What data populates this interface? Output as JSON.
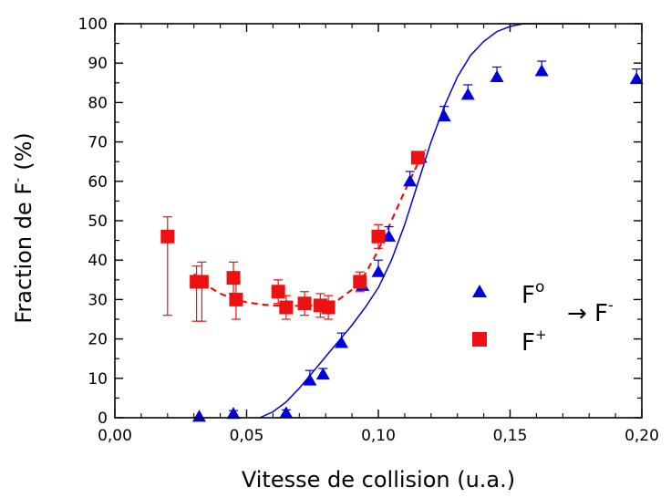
{
  "chart_data": {
    "type": "scatter",
    "xlabel": "Vitesse de collision (u.a.)",
    "ylabel_main": "Fraction de F",
    "ylabel_sup": "-",
    "ylabel_unit": "(%)",
    "xlim": [
      0.0,
      0.2
    ],
    "ylim": [
      0,
      100
    ],
    "x_ticks": [
      0.0,
      0.05,
      0.1,
      0.15,
      0.2
    ],
    "x_tick_labels": [
      "0,00",
      "0,05",
      "0,10",
      "0,15",
      "0,20"
    ],
    "y_ticks": [
      0,
      10,
      20,
      30,
      40,
      50,
      60,
      70,
      80,
      90,
      100
    ],
    "y_tick_labels": [
      "0",
      "10",
      "20",
      "30",
      "40",
      "50",
      "60",
      "70",
      "80",
      "90",
      "100"
    ],
    "grid": false,
    "legend_placement": "bottom-right",
    "legend_arrow": "→",
    "legend_target": "F",
    "legend_target_sup": "-",
    "series": [
      {
        "name": "F",
        "name_sup": "o",
        "marker": "triangle",
        "color": "#0000dd",
        "points": [
          {
            "x": 0.032,
            "y": 0.3,
            "err": 0
          },
          {
            "x": 0.045,
            "y": 1.0,
            "err": 0.8
          },
          {
            "x": 0.065,
            "y": 1.2,
            "err": 0.8
          },
          {
            "x": 0.074,
            "y": 9.5,
            "err": 2.5
          },
          {
            "x": 0.079,
            "y": 11.0,
            "err": 1.5
          },
          {
            "x": 0.086,
            "y": 19.0,
            "err": 2.5
          },
          {
            "x": 0.094,
            "y": 33.5,
            "err": 1.5
          },
          {
            "x": 0.1,
            "y": 37.0,
            "err": 3.0
          },
          {
            "x": 0.104,
            "y": 46.0,
            "err": 2.5
          },
          {
            "x": 0.112,
            "y": 60.0,
            "err": 2.5
          },
          {
            "x": 0.116,
            "y": 66.0,
            "err": 1.0
          },
          {
            "x": 0.125,
            "y": 76.5,
            "err": 2.5
          },
          {
            "x": 0.134,
            "y": 82.0,
            "err": 2.5
          },
          {
            "x": 0.145,
            "y": 86.5,
            "err": 2.5
          },
          {
            "x": 0.162,
            "y": 88.0,
            "err": 2.5
          },
          {
            "x": 0.198,
            "y": 86.0,
            "err": 2.5
          }
        ]
      },
      {
        "name": "F",
        "name_sup": "+",
        "marker": "square",
        "color": "#ee1111",
        "points": [
          {
            "x": 0.02,
            "y": 46.0,
            "err": 5.0,
            "err_low": 20.0
          },
          {
            "x": 0.031,
            "y": 34.5,
            "err": 4.0,
            "err_low": 10.0
          },
          {
            "x": 0.033,
            "y": 34.5,
            "err": 5.0,
            "err_low": 10.0
          },
          {
            "x": 0.045,
            "y": 35.5,
            "err": 4.0,
            "err_low": 4.0
          },
          {
            "x": 0.046,
            "y": 30.0,
            "err": 4.5,
            "err_low": 5.0
          },
          {
            "x": 0.062,
            "y": 32.0,
            "err": 3.0,
            "err_low": 3.0
          },
          {
            "x": 0.065,
            "y": 28.0,
            "err": 3.0,
            "err_low": 3.0
          },
          {
            "x": 0.072,
            "y": 29.0,
            "err": 3.0,
            "err_low": 3.0
          },
          {
            "x": 0.078,
            "y": 28.5,
            "err": 3.0,
            "err_low": 3.0
          },
          {
            "x": 0.081,
            "y": 28.0,
            "err": 3.0,
            "err_low": 3.0
          },
          {
            "x": 0.093,
            "y": 34.5,
            "err": 2.5,
            "err_low": 2.5
          },
          {
            "x": 0.1,
            "y": 46.0,
            "err": 3.0,
            "err_low": 3.0
          },
          {
            "x": 0.115,
            "y": 66.0,
            "err": 1.5,
            "err_low": 1.5
          }
        ]
      }
    ],
    "fit_curves": [
      {
        "series_index": 0,
        "style": "solid",
        "color": "#0000dd",
        "points": [
          {
            "x": 0.055,
            "y": 0.0
          },
          {
            "x": 0.06,
            "y": 1.5
          },
          {
            "x": 0.065,
            "y": 4.0
          },
          {
            "x": 0.07,
            "y": 7.5
          },
          {
            "x": 0.075,
            "y": 11.5
          },
          {
            "x": 0.08,
            "y": 15.5
          },
          {
            "x": 0.085,
            "y": 19.5
          },
          {
            "x": 0.09,
            "y": 23.5
          },
          {
            "x": 0.095,
            "y": 28.0
          },
          {
            "x": 0.1,
            "y": 33.0
          },
          {
            "x": 0.105,
            "y": 40.0
          },
          {
            "x": 0.11,
            "y": 49.0
          },
          {
            "x": 0.115,
            "y": 59.5
          },
          {
            "x": 0.12,
            "y": 70.0
          },
          {
            "x": 0.125,
            "y": 79.0
          },
          {
            "x": 0.13,
            "y": 86.5
          },
          {
            "x": 0.135,
            "y": 92.0
          },
          {
            "x": 0.14,
            "y": 95.5
          },
          {
            "x": 0.145,
            "y": 98.0
          },
          {
            "x": 0.15,
            "y": 99.3
          },
          {
            "x": 0.155,
            "y": 100.0
          },
          {
            "x": 0.18,
            "y": 100.0
          }
        ]
      },
      {
        "series_index": 1,
        "style": "dashed",
        "color": "#ee1111",
        "points": [
          {
            "x": 0.03,
            "y": 36.5
          },
          {
            "x": 0.035,
            "y": 33.5
          },
          {
            "x": 0.04,
            "y": 31.5
          },
          {
            "x": 0.045,
            "y": 30.2
          },
          {
            "x": 0.05,
            "y": 29.3
          },
          {
            "x": 0.055,
            "y": 28.8
          },
          {
            "x": 0.06,
            "y": 28.5
          },
          {
            "x": 0.065,
            "y": 28.4
          },
          {
            "x": 0.07,
            "y": 28.4
          },
          {
            "x": 0.075,
            "y": 28.5
          },
          {
            "x": 0.08,
            "y": 29.0
          },
          {
            "x": 0.085,
            "y": 30.0
          },
          {
            "x": 0.09,
            "y": 32.5
          },
          {
            "x": 0.095,
            "y": 36.5
          },
          {
            "x": 0.1,
            "y": 42.5
          },
          {
            "x": 0.105,
            "y": 50.0
          },
          {
            "x": 0.11,
            "y": 57.5
          },
          {
            "x": 0.115,
            "y": 64.5
          },
          {
            "x": 0.118,
            "y": 68.0
          }
        ]
      }
    ]
  }
}
